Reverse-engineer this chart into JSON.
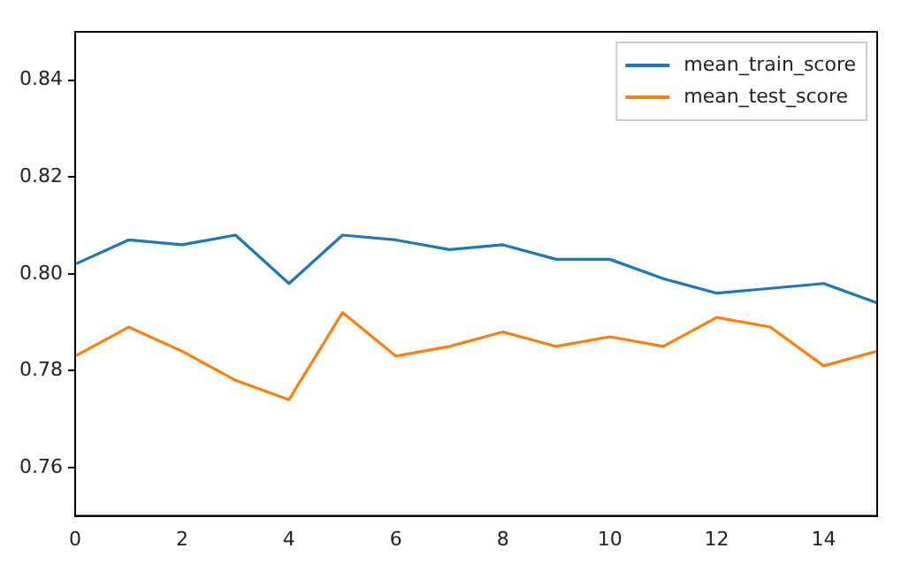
{
  "chart_data": {
    "type": "line",
    "x": [
      0,
      1,
      2,
      3,
      4,
      5,
      6,
      7,
      8,
      9,
      10,
      11,
      12,
      13,
      14,
      15
    ],
    "series": [
      {
        "name": "mean_train_score",
        "color": "#1f77b4",
        "values": [
          0.802,
          0.807,
          0.806,
          0.808,
          0.798,
          0.808,
          0.807,
          0.805,
          0.806,
          0.803,
          0.803,
          0.799,
          0.796,
          0.797,
          0.798,
          0.794
        ]
      },
      {
        "name": "mean_test_score",
        "color": "#ff7f0e",
        "values": [
          0.783,
          0.789,
          0.784,
          0.778,
          0.774,
          0.792,
          0.783,
          0.785,
          0.788,
          0.785,
          0.787,
          0.785,
          0.791,
          0.789,
          0.781,
          0.784
        ]
      }
    ],
    "xlim": [
      0,
      15
    ],
    "xticks": [
      0,
      2,
      4,
      6,
      8,
      10,
      12,
      14
    ],
    "ylim": [
      0.75,
      0.85
    ],
    "yticks": [
      0.76,
      0.78,
      {
        "value": 0.8,
        "label": "0.80"
      },
      0.82,
      0.84
    ],
    "grid": false,
    "legend": "top right",
    "marker": "none",
    "line_style": "solid"
  }
}
